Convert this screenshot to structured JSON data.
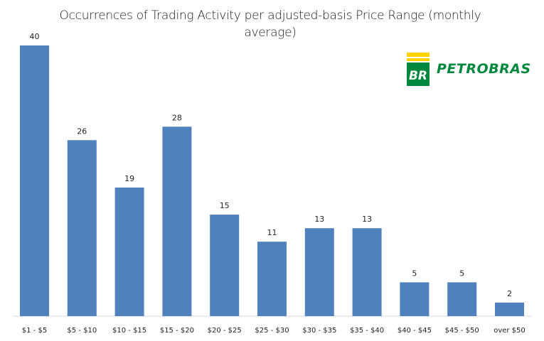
{
  "chart_data": {
    "type": "bar",
    "title": "Occurrences of Trading Activity per adjusted-basis Price Range (monthly average)",
    "categories": [
      "$1 - $5",
      "$5 - $10",
      "$10 - $15",
      "$15 - $20",
      "$20 - $25",
      "$25 - $30",
      "$30 - $35",
      "$35 - $40",
      "$40 - $45",
      "$45 - $50",
      "over $50"
    ],
    "values": [
      40,
      26,
      19,
      28,
      15,
      11,
      13,
      13,
      5,
      5,
      2
    ],
    "ylim": [
      0,
      40
    ],
    "grid": false,
    "legend": "none",
    "bar_color": "#4f81bd"
  },
  "logo": {
    "text": "PETROBRAS",
    "mark_text": "BR",
    "green": "#00883f",
    "yellow": "#ffd200"
  }
}
